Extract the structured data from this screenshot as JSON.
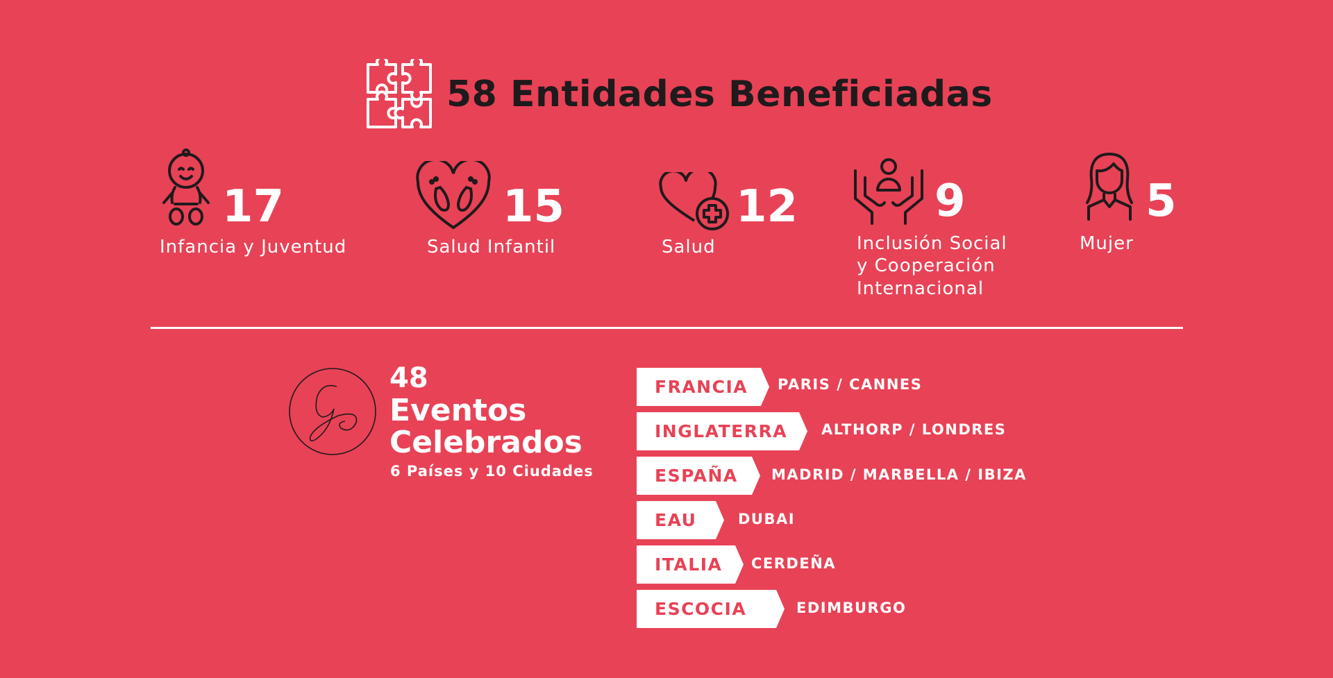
{
  "header": {
    "title": "58 Entidades Beneficiadas",
    "icon": "puzzle-icon"
  },
  "stats": [
    {
      "number": "17",
      "label": "Infancia y Juventud",
      "icon": "baby-icon"
    },
    {
      "number": "15",
      "label": "Salud Infantil",
      "icon": "heart-footprints-icon"
    },
    {
      "number": "12",
      "label": "Salud",
      "icon": "heart-plus-icon"
    },
    {
      "number": "9",
      "label_lines": [
        "Inclusión Social",
        "y Cooperación",
        "Internacional"
      ],
      "icon": "hands-person-icon"
    },
    {
      "number": "5",
      "label": "Mujer",
      "icon": "woman-icon"
    }
  ],
  "events": {
    "logo_letter": "G",
    "count": "48",
    "line1": "Eventos",
    "line2": "Celebrados",
    "subtitle": "6 Países y 10 Ciudades"
  },
  "countries": [
    {
      "country": "FRANCIA",
      "cities": "PARIS / CANNES"
    },
    {
      "country": "INGLATERRA",
      "cities": "ALTHORP / LONDRES"
    },
    {
      "country": "ESPAÑA",
      "cities": "MADRID / MARBELLA / IBIZA"
    },
    {
      "country": "EAU",
      "cities": "DUBAI"
    },
    {
      "country": "ITALIA",
      "cities": "CERDEÑA"
    },
    {
      "country": "ESCOCIA",
      "cities": "EDIMBURGO"
    }
  ],
  "colors": {
    "background": "#e84256",
    "title": "#1f1a1c",
    "text": "#ffffff"
  }
}
